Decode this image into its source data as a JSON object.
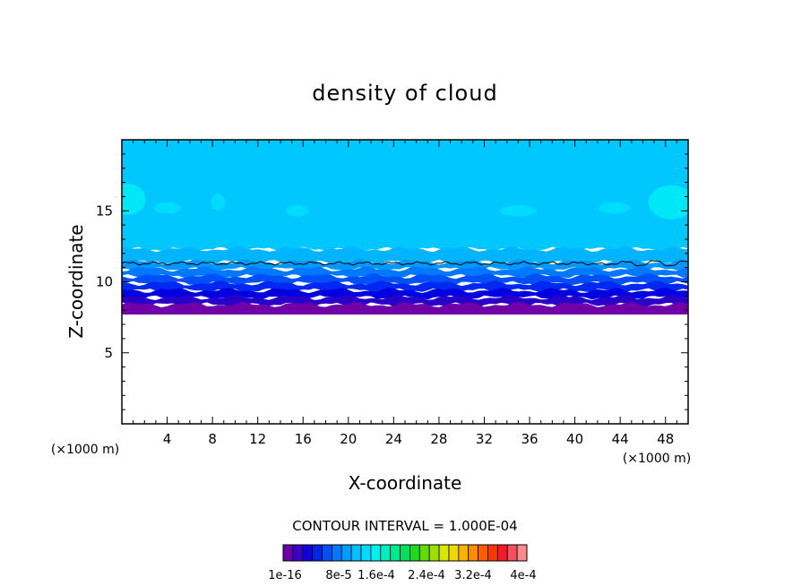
{
  "chart_data": {
    "type": "heatmap",
    "title": "density of cloud",
    "xlabel": "X-coordinate",
    "ylabel": "Z-coordinate",
    "x_unit": "(×1000 m)",
    "y_unit": "(×1000 m)",
    "xlim": [
      0,
      50
    ],
    "ylim": [
      0,
      20
    ],
    "x_ticks": [
      "4",
      "8",
      "12",
      "16",
      "20",
      "24",
      "28",
      "32",
      "36",
      "40",
      "44",
      "48"
    ],
    "x_tick_values": [
      4,
      8,
      12,
      16,
      20,
      24,
      28,
      32,
      36,
      40,
      44,
      48
    ],
    "y_ticks": [
      "5",
      "10",
      "15"
    ],
    "y_tick_values": [
      5,
      10,
      15
    ],
    "contour_interval_label": "CONTOUR INTERVAL = 1.000E-04",
    "colorbar": {
      "labels": [
        "1e-16",
        "8e-5",
        "1.6e-4",
        "2.4e-4",
        "3.2e-4",
        "4e-4"
      ],
      "colors": [
        "#6a00a8",
        "#3e00c8",
        "#1400d8",
        "#0024e8",
        "#0050f4",
        "#0078ff",
        "#009cff",
        "#00c0ff",
        "#00dcff",
        "#00f0f0",
        "#00f0c0",
        "#00e890",
        "#00e060",
        "#20d820",
        "#60dc00",
        "#a0e000",
        "#d8e800",
        "#f0d800",
        "#f8b400",
        "#fc8c00",
        "#fc5c00",
        "#f83800",
        "#f01c28",
        "#f45060",
        "#f88c8c"
      ]
    },
    "bands": [
      {
        "z_bottom": 7.7,
        "z_top": 8.4,
        "color": "#7000a8"
      },
      {
        "z_bottom": 8.4,
        "z_top": 8.9,
        "color": "#2800c8"
      },
      {
        "z_bottom": 8.9,
        "z_top": 9.4,
        "color": "#0000e0"
      },
      {
        "z_bottom": 9.4,
        "z_top": 9.9,
        "color": "#0028f0"
      },
      {
        "z_bottom": 9.9,
        "z_top": 10.4,
        "color": "#0050f8"
      },
      {
        "z_bottom": 10.4,
        "z_top": 10.9,
        "color": "#0078ff"
      },
      {
        "z_bottom": 10.9,
        "z_top": 11.4,
        "color": "#0098ff"
      },
      {
        "z_bottom": 11.4,
        "z_top": 12.3,
        "color": "#00b4ff"
      },
      {
        "z_bottom": 12.3,
        "z_top": 20.0,
        "color": "#00c8ff"
      }
    ],
    "contour_line_z": 11.3,
    "top_patches": [
      {
        "x": 0.5,
        "z": 15.8,
        "rx": 1.6,
        "rz": 1.1,
        "color": "#00e8f8"
      },
      {
        "x": 48.5,
        "z": 15.6,
        "rx": 2.0,
        "rz": 1.2,
        "color": "#00e8f8"
      },
      {
        "x": 15.5,
        "z": 15.0,
        "rx": 1.0,
        "rz": 0.4,
        "color": "#00dcff"
      },
      {
        "x": 35.0,
        "z": 15.0,
        "rx": 1.6,
        "rz": 0.4,
        "color": "#00dcff"
      },
      {
        "x": 43.5,
        "z": 15.2,
        "rx": 1.4,
        "rz": 0.4,
        "color": "#00dcff"
      },
      {
        "x": 4.0,
        "z": 15.2,
        "rx": 1.2,
        "rz": 0.4,
        "color": "#00dcff"
      },
      {
        "x": 8.5,
        "z": 15.6,
        "rx": 0.6,
        "rz": 0.6,
        "color": "#00dcff"
      }
    ],
    "grid": false,
    "legend": "colorbar-bottom"
  }
}
